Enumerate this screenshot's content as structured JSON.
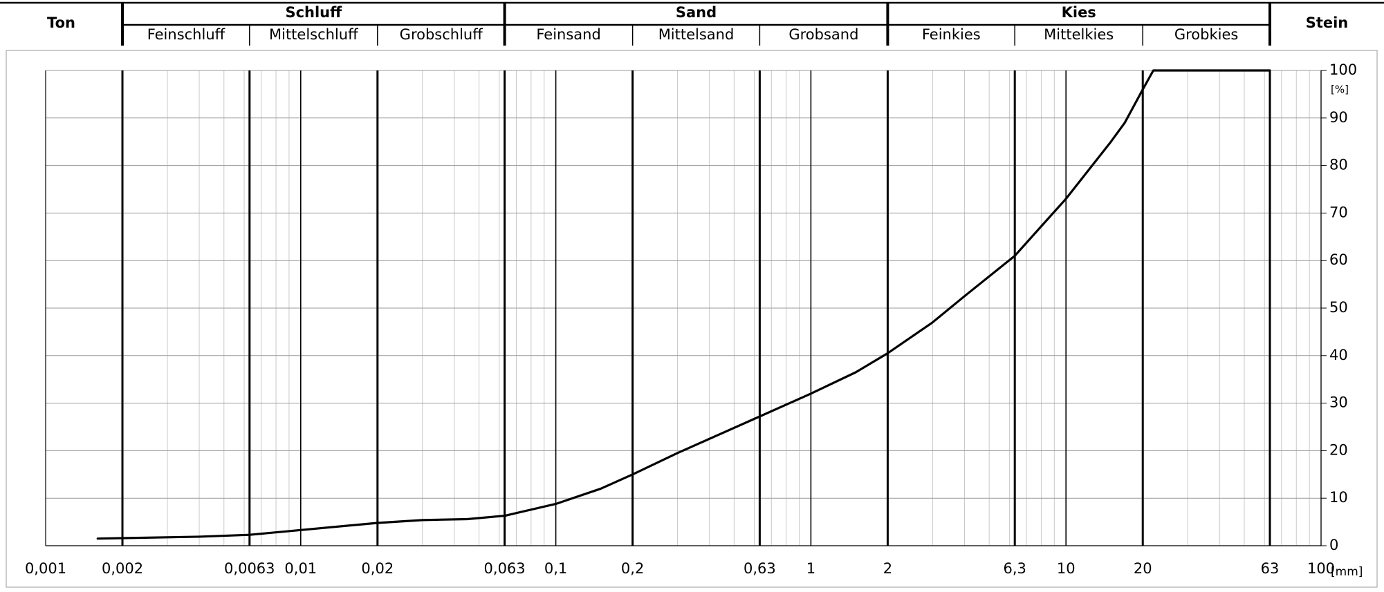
{
  "header": {
    "groups": [
      {
        "name": "Ton"
      },
      {
        "name": "Schluff",
        "parts": [
          "Feinschluff",
          "Mittelschluff",
          "Grobschluff"
        ]
      },
      {
        "name": "Sand",
        "parts": [
          "Feinsand",
          "Mittelsand",
          "Grobsand"
        ]
      },
      {
        "name": "Kies",
        "parts": [
          "Feinkies",
          "Mittelkies",
          "Grobkies"
        ]
      },
      {
        "name": "Stein"
      }
    ]
  },
  "chart_data": {
    "type": "line",
    "xscale": "log",
    "grid": true,
    "minor_grid": true,
    "xlabel": "[mm]",
    "ylabel": "[%]",
    "x": [
      0.0016,
      0.002,
      0.004,
      0.0063,
      0.01,
      0.02,
      0.03,
      0.045,
      0.06,
      0.063,
      0.1,
      0.15,
      0.2,
      0.3,
      0.63,
      1,
      1.5,
      2,
      3,
      4,
      6.3,
      10,
      15,
      17,
      20,
      22,
      30,
      63
    ],
    "series": [
      {
        "color": "#000000",
        "values": [
          1.5,
          1.6,
          1.9,
          2.3,
          3.3,
          4.8,
          5.4,
          5.6,
          6.2,
          6.3,
          8.8,
          12,
          15,
          19.5,
          27.2,
          32,
          36.5,
          40.5,
          47,
          52.5,
          61,
          73,
          85,
          89,
          96,
          100,
          100,
          100
        ]
      }
    ],
    "xlim": [
      0.001,
      100
    ],
    "xticks": [
      {
        "value": 0.001,
        "label": "0,001"
      },
      {
        "value": 0.002,
        "label": "0,002"
      },
      {
        "value": 0.0063,
        "label": "0,0063"
      },
      {
        "value": 0.01,
        "label": "0,01"
      },
      {
        "value": 0.02,
        "label": "0,02"
      },
      {
        "value": 0.063,
        "label": "0,063"
      },
      {
        "value": 0.1,
        "label": "0,1"
      },
      {
        "value": 0.2,
        "label": "0,2"
      },
      {
        "value": 0.63,
        "label": "0,63"
      },
      1,
      2,
      {
        "value": 6.3,
        "label": "6,3"
      },
      10,
      20,
      63,
      100
    ],
    "ylim": [
      0,
      100
    ],
    "yticks": [
      0,
      10,
      20,
      30,
      40,
      50,
      60,
      70,
      80,
      90,
      100
    ]
  }
}
